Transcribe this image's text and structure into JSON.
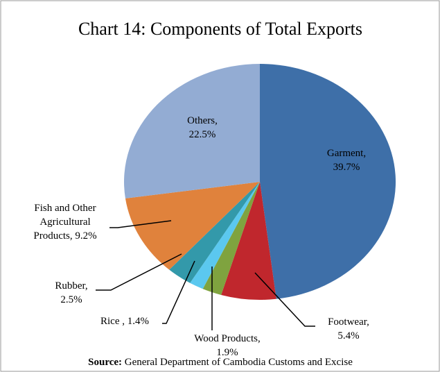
{
  "chart_data": {
    "type": "pie",
    "title": "Chart 14: Components of Total Exports",
    "categories": [
      "Garment",
      "Footwear",
      "Wood Products",
      "Rice",
      "Rubber",
      "Fish and Other Agricultural Products",
      "Others"
    ],
    "values": [
      39.7,
      5.4,
      1.9,
      1.4,
      2.5,
      9.2,
      22.5
    ],
    "value_labels": [
      [
        "Garment,",
        "39.7%"
      ],
      [
        "Footwear,",
        "5.4%"
      ],
      [
        "Wood Products,",
        "1.9%"
      ],
      [
        "Rice , 1.4%"
      ],
      [
        "Rubber,",
        "2.5%"
      ],
      [
        "Fish and Other",
        "Agricultural",
        "Products, 9.2%"
      ],
      [
        "Others,",
        "22.5%"
      ]
    ],
    "colors": [
      "#3e6fa8",
      "#c0272d",
      "#7fa33f",
      "#5bc8ef",
      "#3399aa",
      "#e0823c",
      "#93acd3"
    ],
    "source_label": "Source:",
    "source": "General Department of Cambodia Customs and Excise"
  }
}
